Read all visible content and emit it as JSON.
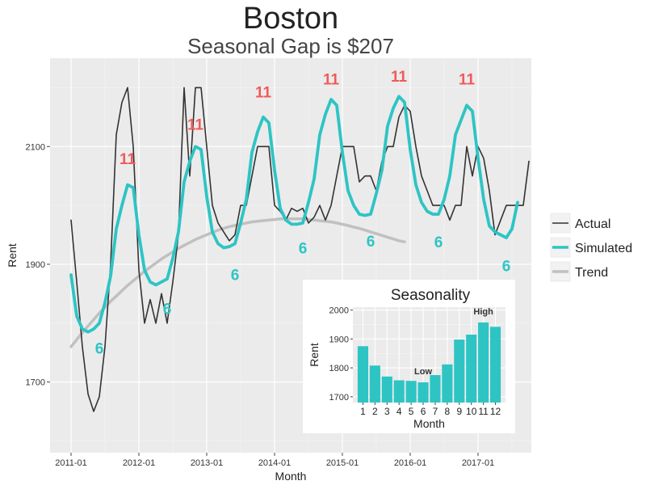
{
  "chart_data": [
    {
      "type": "line",
      "title": "Boston",
      "subtitle": "Seasonal Gap is $207",
      "xlabel": "Month",
      "ylabel": "Rent",
      "ylim": [
        1580,
        2250
      ],
      "yticks": [
        1700,
        1900,
        2100
      ],
      "xticks": [
        "2011-01",
        "2012-01",
        "2013-01",
        "2014-01",
        "2015-01",
        "2016-01",
        "2017-01"
      ],
      "grid": true,
      "legend_position": "right",
      "colors": {
        "Actual": "#333333",
        "Simulated": "#2ec4c4",
        "Trend": "#c0c0c0",
        "peak_label": "#f05a5a",
        "trough_label": "#2ec4c4",
        "panel": "#ebebeb"
      },
      "series": [
        {
          "name": "Actual",
          "x_start": "2011-01",
          "values": [
            1975,
            1870,
            1760,
            1680,
            1650,
            1675,
            1760,
            1900,
            2120,
            2175,
            2200,
            2100,
            1890,
            1800,
            1840,
            1800,
            1850,
            1800,
            1870,
            1950,
            2200,
            2050,
            2200,
            2200,
            2100,
            2000,
            1970,
            1955,
            1940,
            1950,
            2000,
            2000,
            2050,
            2100,
            2100,
            2100,
            2000,
            1990,
            1975,
            1995,
            1990,
            1995,
            1970,
            1980,
            2000,
            1975,
            2000,
            2050,
            2100,
            2100,
            2100,
            2040,
            2050,
            2050,
            2025,
            2075,
            2100,
            2100,
            2150,
            2170,
            2160,
            2100,
            2050,
            2025,
            2000,
            2000,
            2000,
            1975,
            2000,
            2000,
            2100,
            2050,
            2100,
            2080,
            2025,
            1950,
            1975,
            2000,
            2000,
            2000,
            2000,
            2075
          ]
        },
        {
          "name": "Simulated",
          "x_start": "2011-01",
          "values": [
            1882,
            1812,
            1790,
            1785,
            1790,
            1800,
            1835,
            1880,
            1960,
            2000,
            2035,
            2030,
            1950,
            1890,
            1870,
            1865,
            1870,
            1875,
            1910,
            1955,
            2040,
            2075,
            2100,
            2095,
            2015,
            1955,
            1935,
            1928,
            1930,
            1935,
            1970,
            2010,
            2090,
            2125,
            2150,
            2140,
            2060,
            1995,
            1975,
            1968,
            1968,
            1970,
            2005,
            2045,
            2120,
            2155,
            2180,
            2170,
            2090,
            2025,
            2000,
            1985,
            1983,
            1985,
            2020,
            2060,
            2135,
            2165,
            2185,
            2175,
            2095,
            2035,
            2005,
            1990,
            1985,
            1985,
            2010,
            2050,
            2120,
            2145,
            2170,
            2160,
            2080,
            2010,
            1965,
            1955,
            1950,
            1945,
            1960,
            2005
          ]
        },
        {
          "name": "Trend",
          "x_start": "2011-01",
          "values": [
            1760,
            1772,
            1784,
            1795,
            1806,
            1817,
            1827,
            1837,
            1846,
            1855,
            1864,
            1872,
            1880,
            1888,
            1895,
            1902,
            1909,
            1915,
            1921,
            1927,
            1932,
            1937,
            1942,
            1946,
            1950,
            1954,
            1958,
            1961,
            1964,
            1966,
            1968,
            1970,
            1972,
            1973,
            1974,
            1975,
            1976,
            1977,
            1977,
            1977,
            1977,
            1977,
            1976,
            1975,
            1974,
            1973,
            1972,
            1970,
            1968,
            1966,
            1963,
            1961,
            1958,
            1955,
            1952,
            1949,
            1946,
            1943,
            1940,
            1938
          ]
        }
      ],
      "annotations": [
        {
          "text": "11",
          "x": "2011-11",
          "y": 2080,
          "kind": "peak"
        },
        {
          "text": "11",
          "x": "2012-11",
          "y": 2138,
          "kind": "peak"
        },
        {
          "text": "11",
          "x": "2013-11",
          "y": 2193,
          "kind": "peak"
        },
        {
          "text": "11",
          "x": "2014-11",
          "y": 2215,
          "kind": "peak"
        },
        {
          "text": "11",
          "x": "2015-11",
          "y": 2220,
          "kind": "peak"
        },
        {
          "text": "11",
          "x": "2016-11",
          "y": 2215,
          "kind": "peak"
        },
        {
          "text": "6",
          "x": "2011-06",
          "y": 1758,
          "kind": "trough"
        },
        {
          "text": "6",
          "x": "2012-06",
          "y": 1825,
          "kind": "trough"
        },
        {
          "text": "6",
          "x": "2013-06",
          "y": 1883,
          "kind": "trough"
        },
        {
          "text": "6",
          "x": "2014-06",
          "y": 1928,
          "kind": "trough"
        },
        {
          "text": "6",
          "x": "2015-06",
          "y": 1940,
          "kind": "trough"
        },
        {
          "text": "6",
          "x": "2016-06",
          "y": 1938,
          "kind": "trough"
        },
        {
          "text": "6",
          "x": "2017-06",
          "y": 1898,
          "kind": "trough"
        }
      ],
      "legend": [
        "Actual",
        "Simulated",
        "Trend"
      ]
    },
    {
      "type": "bar",
      "title": "Seasonality",
      "xlabel": "Month",
      "ylabel": "Rent",
      "ylim": [
        1680,
        2010
      ],
      "yticks": [
        1700,
        1800,
        1900,
        2000
      ],
      "color": "#2ec4c4",
      "categories": [
        "1",
        "2",
        "3",
        "4",
        "5",
        "6",
        "7",
        "8",
        "9",
        "10",
        "11",
        "12"
      ],
      "values": [
        1875,
        1808,
        1770,
        1757,
        1755,
        1750,
        1775,
        1812,
        1898,
        1915,
        1957,
        1942
      ],
      "annotations": [
        {
          "text": "Low",
          "category": "6"
        },
        {
          "text": "High",
          "category": "11"
        }
      ]
    }
  ]
}
